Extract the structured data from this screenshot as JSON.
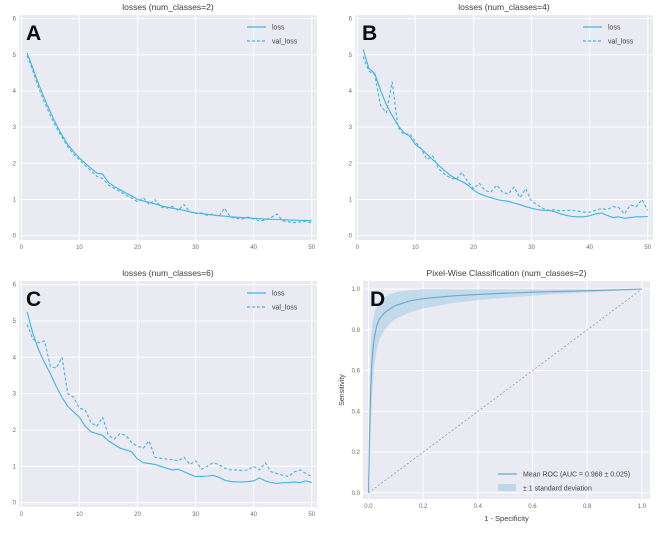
{
  "page": {
    "background": "#ffffff"
  },
  "colors": {
    "plot_bg": "#e9eaf2",
    "grid": "#ffffff",
    "loss_line": "#3fb5e2",
    "roc_line": "#68a9d2",
    "roc_band": "#9ecae1",
    "diagonal": "#9b9b9b",
    "title_text": "#3d3d3d",
    "tick_text": "#6b6b6b",
    "legend_text": "#444444",
    "panel_letter": "#0d0d0d"
  },
  "chart_data": [
    {
      "id": "panel-a",
      "panel_letter": "A",
      "type": "line",
      "title": "losses (num_classes=2)",
      "xlabel": "",
      "ylabel": "",
      "xlim": [
        -0.4,
        50.9
      ],
      "ylim": [
        -0.12,
        6.1
      ],
      "xticks": [
        0,
        10,
        20,
        30,
        40,
        50
      ],
      "xtick_labels": [
        "0",
        "10",
        "20",
        "30",
        "40",
        "50"
      ],
      "yticks": [
        0,
        1,
        2,
        3,
        4,
        5,
        6
      ],
      "ytick_labels": [
        "0",
        "1",
        "2",
        "3",
        "4",
        "5",
        "6"
      ],
      "x": [
        1,
        2,
        3,
        4,
        5,
        6,
        7,
        8,
        9,
        10,
        11,
        12,
        13,
        14,
        15,
        16,
        17,
        18,
        19,
        20,
        21,
        22,
        23,
        24,
        25,
        26,
        27,
        28,
        29,
        30,
        31,
        32,
        33,
        34,
        35,
        36,
        37,
        38,
        39,
        40,
        41,
        42,
        43,
        44,
        45,
        46,
        47,
        48,
        49,
        50
      ],
      "series": [
        {
          "name": "loss",
          "dash": false,
          "values": [
            5.05,
            4.62,
            4.18,
            3.78,
            3.42,
            3.08,
            2.78,
            2.52,
            2.32,
            2.15,
            2.0,
            1.86,
            1.73,
            1.7,
            1.47,
            1.36,
            1.27,
            1.18,
            1.1,
            1.0,
            0.96,
            0.92,
            0.88,
            0.83,
            0.79,
            0.76,
            0.73,
            0.7,
            0.66,
            0.63,
            0.61,
            0.59,
            0.57,
            0.55,
            0.54,
            0.52,
            0.51,
            0.5,
            0.49,
            0.48,
            0.47,
            0.46,
            0.45,
            0.45,
            0.44,
            0.43,
            0.43,
            0.42,
            0.42,
            0.41
          ]
        },
        {
          "name": "val_loss",
          "dash": true,
          "values": [
            4.98,
            4.55,
            4.08,
            3.68,
            3.32,
            3.0,
            2.72,
            2.46,
            2.25,
            2.1,
            1.94,
            1.8,
            1.64,
            1.58,
            1.4,
            1.31,
            1.22,
            1.12,
            1.04,
            0.94,
            1.05,
            0.86,
            1.0,
            0.8,
            0.76,
            0.81,
            0.7,
            0.86,
            0.66,
            0.61,
            0.63,
            0.56,
            0.6,
            0.53,
            0.76,
            0.51,
            0.48,
            0.46,
            0.51,
            0.46,
            0.41,
            0.43,
            0.5,
            0.6,
            0.41,
            0.38,
            0.36,
            0.38,
            0.4,
            0.35
          ]
        }
      ],
      "legend": {
        "position": "top-right",
        "entries": [
          {
            "swatch": "line",
            "label": "loss"
          },
          {
            "swatch": "dash",
            "label": "val_loss"
          }
        ]
      }
    },
    {
      "id": "panel-b",
      "panel_letter": "B",
      "type": "line",
      "title": "losses (num_classes=4)",
      "xlabel": "",
      "ylabel": "",
      "xlim": [
        -0.4,
        50.9
      ],
      "ylim": [
        -0.12,
        6.1
      ],
      "xticks": [
        0,
        10,
        20,
        30,
        40,
        50
      ],
      "xtick_labels": [
        "0",
        "10",
        "20",
        "30",
        "40",
        "50"
      ],
      "yticks": [
        0,
        1,
        2,
        3,
        4,
        5,
        6
      ],
      "ytick_labels": [
        "0",
        "1",
        "2",
        "3",
        "4",
        "5",
        "6"
      ],
      "x": [
        1,
        2,
        3,
        4,
        5,
        6,
        7,
        8,
        9,
        10,
        11,
        12,
        13,
        14,
        15,
        16,
        17,
        18,
        19,
        20,
        21,
        22,
        23,
        24,
        25,
        26,
        27,
        28,
        29,
        30,
        31,
        32,
        33,
        34,
        35,
        36,
        37,
        38,
        39,
        40,
        41,
        42,
        43,
        44,
        45,
        46,
        47,
        48,
        49,
        50
      ],
      "series": [
        {
          "name": "loss",
          "dash": false,
          "values": [
            5.15,
            4.62,
            4.48,
            4.02,
            3.62,
            3.32,
            3.05,
            2.85,
            2.75,
            2.52,
            2.4,
            2.25,
            2.1,
            1.95,
            1.8,
            1.67,
            1.57,
            1.5,
            1.4,
            1.26,
            1.16,
            1.1,
            1.05,
            1.0,
            0.97,
            0.95,
            0.9,
            0.86,
            0.8,
            0.76,
            0.72,
            0.7,
            0.7,
            0.66,
            0.6,
            0.56,
            0.53,
            0.52,
            0.52,
            0.55,
            0.6,
            0.63,
            0.56,
            0.5,
            0.52,
            0.48,
            0.5,
            0.52,
            0.52,
            0.53
          ]
        },
        {
          "name": "val_loss",
          "dash": true,
          "values": [
            4.95,
            4.55,
            4.45,
            3.6,
            3.4,
            4.25,
            3.0,
            2.8,
            2.82,
            2.6,
            2.4,
            2.1,
            2.2,
            1.85,
            1.7,
            1.6,
            1.55,
            1.75,
            1.5,
            1.3,
            1.45,
            1.25,
            1.2,
            1.4,
            1.2,
            1.15,
            1.35,
            1.05,
            1.3,
            0.95,
            0.85,
            0.75,
            0.7,
            0.72,
            0.68,
            0.7,
            0.7,
            0.68,
            0.65,
            0.65,
            0.7,
            0.75,
            0.72,
            0.8,
            0.78,
            0.6,
            0.85,
            0.8,
            1.0,
            0.7
          ]
        }
      ],
      "legend": {
        "position": "top-right",
        "entries": [
          {
            "swatch": "line",
            "label": "loss"
          },
          {
            "swatch": "dash",
            "label": "val_loss"
          }
        ]
      }
    },
    {
      "id": "panel-c",
      "panel_letter": "C",
      "type": "line",
      "title": "losses (num_classes=6)",
      "xlabel": "",
      "ylabel": "",
      "xlim": [
        -0.4,
        50.9
      ],
      "ylim": [
        -0.12,
        6.1
      ],
      "xticks": [
        0,
        10,
        20,
        30,
        40,
        50
      ],
      "xtick_labels": [
        "0",
        "10",
        "20",
        "30",
        "40",
        "50"
      ],
      "yticks": [
        0,
        1,
        2,
        3,
        4,
        5,
        6
      ],
      "ytick_labels": [
        "0",
        "1",
        "2",
        "3",
        "4",
        "5",
        "6"
      ],
      "x": [
        1,
        2,
        3,
        4,
        5,
        6,
        7,
        8,
        9,
        10,
        11,
        12,
        13,
        14,
        15,
        16,
        17,
        18,
        19,
        20,
        21,
        22,
        23,
        24,
        25,
        26,
        27,
        28,
        29,
        30,
        31,
        32,
        33,
        34,
        35,
        36,
        37,
        38,
        39,
        40,
        41,
        42,
        43,
        44,
        45,
        46,
        47,
        48,
        49,
        50
      ],
      "series": [
        {
          "name": "loss",
          "dash": false,
          "values": [
            5.25,
            4.65,
            4.2,
            3.85,
            3.55,
            3.2,
            2.9,
            2.65,
            2.5,
            2.35,
            2.1,
            1.95,
            1.9,
            1.85,
            1.7,
            1.6,
            1.5,
            1.45,
            1.4,
            1.2,
            1.1,
            1.08,
            1.05,
            1.0,
            0.95,
            0.9,
            0.92,
            0.85,
            0.78,
            0.72,
            0.72,
            0.73,
            0.75,
            0.7,
            0.62,
            0.58,
            0.57,
            0.57,
            0.58,
            0.6,
            0.68,
            0.6,
            0.55,
            0.53,
            0.55,
            0.55,
            0.57,
            0.55,
            0.6,
            0.55
          ]
        },
        {
          "name": "val_loss",
          "dash": true,
          "values": [
            4.9,
            4.5,
            4.4,
            4.45,
            3.75,
            3.7,
            4.0,
            3.0,
            2.9,
            2.6,
            2.55,
            2.2,
            2.1,
            2.35,
            1.85,
            1.75,
            1.9,
            1.85,
            1.65,
            1.55,
            1.5,
            1.7,
            1.25,
            1.22,
            1.2,
            1.18,
            1.15,
            1.25,
            1.05,
            1.15,
            0.92,
            1.0,
            1.1,
            1.05,
            0.95,
            0.9,
            0.9,
            0.88,
            0.9,
            1.0,
            0.9,
            1.1,
            0.85,
            0.8,
            0.75,
            0.72,
            0.85,
            0.9,
            0.8,
            0.72
          ]
        }
      ],
      "legend": {
        "position": "top-right",
        "entries": [
          {
            "swatch": "line",
            "label": "loss"
          },
          {
            "swatch": "dash",
            "label": "val_loss"
          }
        ]
      }
    },
    {
      "id": "panel-d",
      "panel_letter": "D",
      "type": "roc",
      "title": "Pixel-Wise Classification (num_classes=2)",
      "xlabel": "1 - Specificity",
      "ylabel": "Sensitivity",
      "xlim": [
        -0.02,
        1.03
      ],
      "ylim": [
        -0.03,
        1.04
      ],
      "xticks": [
        0.0,
        0.2,
        0.4,
        0.6,
        0.8,
        1.0
      ],
      "xtick_labels": [
        "0.0",
        "0.2",
        "0.4",
        "0.6",
        "0.8",
        "1.0"
      ],
      "yticks": [
        0.0,
        0.2,
        0.4,
        0.6,
        0.8,
        1.0
      ],
      "ytick_labels": [
        "0.0",
        "0.2",
        "0.4",
        "0.6",
        "0.8",
        "1.0"
      ],
      "auc": "0.968 ± 0.025",
      "diagonal": true,
      "mean_roc": {
        "x": [
          0,
          0.004,
          0.008,
          0.012,
          0.016,
          0.02,
          0.03,
          0.04,
          0.06,
          0.08,
          0.1,
          0.15,
          0.2,
          0.3,
          0.4,
          0.5,
          0.6,
          0.7,
          0.8,
          0.9,
          1.0
        ],
        "y": [
          0,
          0.3,
          0.5,
          0.62,
          0.7,
          0.75,
          0.82,
          0.855,
          0.885,
          0.905,
          0.92,
          0.942,
          0.953,
          0.966,
          0.974,
          0.98,
          0.985,
          0.989,
          0.992,
          0.996,
          1.0
        ]
      },
      "band": {
        "x": [
          0,
          0.004,
          0.008,
          0.012,
          0.016,
          0.02,
          0.03,
          0.04,
          0.06,
          0.08,
          0.1,
          0.15,
          0.2,
          0.3,
          0.4,
          0.5,
          0.6,
          0.7,
          0.8,
          0.9,
          1.0
        ],
        "upper": [
          0,
          0.52,
          0.7,
          0.79,
          0.84,
          0.875,
          0.915,
          0.94,
          0.962,
          0.975,
          0.985,
          0.995,
          1.0,
          1.0,
          1.0,
          1.0,
          1.0,
          1.0,
          1.0,
          1.0,
          1.0
        ],
        "lower": [
          0,
          0.1,
          0.28,
          0.44,
          0.54,
          0.615,
          0.7,
          0.755,
          0.8,
          0.835,
          0.855,
          0.885,
          0.905,
          0.93,
          0.946,
          0.958,
          0.968,
          0.977,
          0.984,
          0.991,
          1.0
        ]
      },
      "legend": {
        "position": "bottom-right",
        "entries": [
          {
            "swatch": "line",
            "label": "Mean ROC (AUC = 0.968 ± 0.025)"
          },
          {
            "swatch": "patch",
            "label": "± 1 standard deviation"
          }
        ]
      }
    }
  ]
}
